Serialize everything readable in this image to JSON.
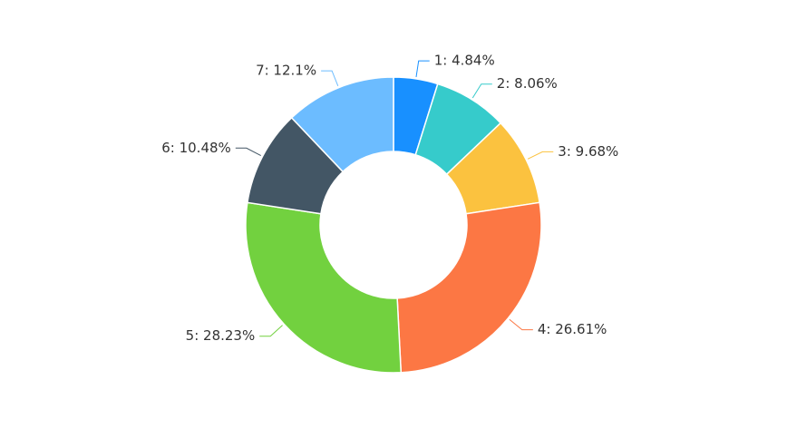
{
  "chart_data": {
    "type": "pie",
    "variant": "donut",
    "title": "",
    "categories": [
      "1",
      "2",
      "3",
      "4",
      "5",
      "6",
      "7"
    ],
    "values": [
      4.84,
      8.06,
      9.68,
      26.61,
      28.23,
      10.48,
      12.1
    ],
    "labels": [
      "1: 4.84%",
      "2: 8.06%",
      "3: 9.68%",
      "4: 26.61%",
      "5: 28.23%",
      "6: 10.48%",
      "7: 12.1%"
    ],
    "colors": [
      "#1890ff",
      "#36cbcb",
      "#fbc23f",
      "#fc7744",
      "#72d13f",
      "#435665",
      "#6cbcff"
    ],
    "start_angle_deg": 0,
    "direction": "clockwise",
    "legend": "none"
  }
}
